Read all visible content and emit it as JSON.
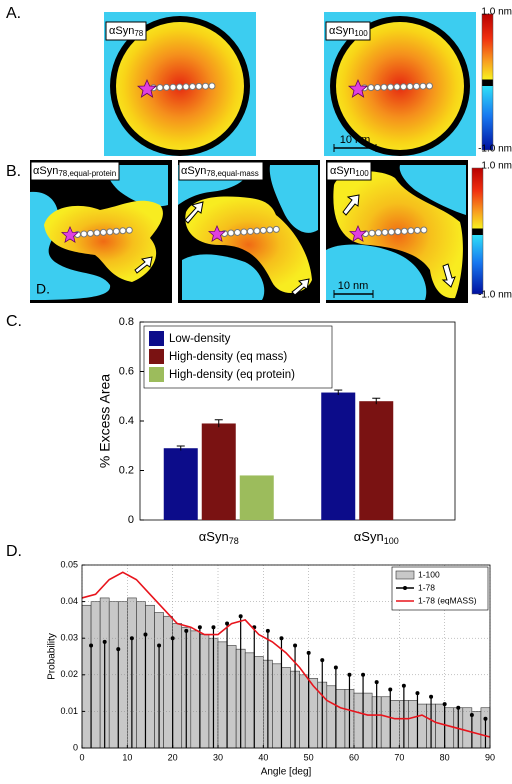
{
  "panels": {
    "A": {
      "letter": "A.",
      "left_label": {
        "base": "αSyn",
        "sub": "78"
      },
      "right_label": {
        "base": "αSyn",
        "sub": "100"
      },
      "scale_bar": "10 nm",
      "colorbar": {
        "max": "1.0 nm",
        "min": "-1.0 nm"
      }
    },
    "B": {
      "letter": "B.",
      "labels": [
        {
          "base": "αSyn",
          "sub": "78,equal-protein"
        },
        {
          "base": "αSyn",
          "sub": "78,equal-mass"
        },
        {
          "base": "αSyn",
          "sub": "100"
        }
      ],
      "inset_letter": "D.",
      "scale_bar": "10 nm",
      "colorbar": {
        "max": "1.0 nm",
        "min": "-1.0 nm"
      }
    },
    "C": {
      "letter": "C."
    },
    "D": {
      "letter": "D."
    }
  },
  "chart_data": [
    {
      "type": "bar",
      "ylabel": "% Excess Area",
      "categories": [
        {
          "base": "αSyn",
          "sub": "78"
        },
        {
          "base": "αSyn",
          "sub": "100"
        }
      ],
      "series": [
        {
          "name": "Low-density",
          "color": "#0c0c8a",
          "values": [
            0.29,
            0.515
          ],
          "errors": [
            0.009,
            0.01
          ]
        },
        {
          "name": "High-density (eq mass)",
          "color": "#7a1212",
          "values": [
            0.39,
            0.48
          ],
          "errors": [
            0.015,
            0.012
          ]
        },
        {
          "name": "High-density (eq protein)",
          "color": "#9cbc5c",
          "values": [
            0.18,
            null
          ]
        }
      ],
      "ylim": [
        0,
        0.8
      ],
      "yticks": [
        0,
        0.2,
        0.4,
        0.6,
        0.8
      ],
      "legend": "upper left"
    },
    {
      "type": "histogram",
      "xlabel": "Angle [deg]",
      "ylabel": "Probability",
      "xlim": [
        0,
        90
      ],
      "xticks": [
        0,
        10,
        20,
        30,
        40,
        50,
        60,
        70,
        80,
        90
      ],
      "ylim": [
        0,
        0.05
      ],
      "yticks": [
        0,
        0.01,
        0.02,
        0.03,
        0.04,
        0.05
      ],
      "grid": true,
      "legend": "upper right",
      "series": [
        {
          "name": "1-100",
          "type": "bar",
          "color": "#c8c8c8",
          "bins": [
            0,
            2,
            4,
            6,
            8,
            10,
            12,
            14,
            16,
            18,
            20,
            22,
            24,
            26,
            28,
            30,
            32,
            34,
            36,
            38,
            40,
            42,
            44,
            46,
            48,
            50,
            52,
            54,
            56,
            58,
            60,
            62,
            64,
            66,
            68,
            70,
            72,
            74,
            76,
            78,
            80,
            82,
            84,
            86,
            88,
            90
          ],
          "values": [
            0.039,
            0.04,
            0.041,
            0.04,
            0.04,
            0.041,
            0.04,
            0.039,
            0.037,
            0.036,
            0.034,
            0.033,
            0.032,
            0.031,
            0.03,
            0.029,
            0.028,
            0.027,
            0.026,
            0.025,
            0.024,
            0.023,
            0.022,
            0.021,
            0.02,
            0.019,
            0.018,
            0.017,
            0.016,
            0.016,
            0.015,
            0.015,
            0.014,
            0.014,
            0.013,
            0.013,
            0.013,
            0.012,
            0.012,
            0.012,
            0.011,
            0.011,
            0.011,
            0.01,
            0.011
          ]
        },
        {
          "name": "1-78",
          "type": "stem",
          "color": "#000000",
          "x": [
            2,
            5,
            8,
            11,
            14,
            17,
            20,
            23,
            26,
            29,
            32,
            35,
            38,
            41,
            44,
            47,
            50,
            53,
            56,
            59,
            62,
            65,
            68,
            71,
            74,
            77,
            80,
            83,
            86,
            89
          ],
          "values": [
            0.028,
            0.029,
            0.027,
            0.03,
            0.031,
            0.028,
            0.03,
            0.032,
            0.033,
            0.033,
            0.034,
            0.036,
            0.033,
            0.032,
            0.03,
            0.028,
            0.026,
            0.024,
            0.022,
            0.02,
            0.02,
            0.018,
            0.016,
            0.017,
            0.015,
            0.014,
            0.012,
            0.011,
            0.009,
            0.008
          ]
        },
        {
          "name": "1-78 (eqMASS)",
          "type": "line",
          "color": "#e8141c",
          "x": [
            0,
            3,
            6,
            9,
            12,
            15,
            18,
            21,
            24,
            27,
            30,
            33,
            36,
            39,
            42,
            45,
            48,
            51,
            54,
            57,
            60,
            63,
            66,
            69,
            72,
            75,
            78,
            81,
            84,
            87,
            90
          ],
          "values": [
            0.041,
            0.042,
            0.046,
            0.048,
            0.046,
            0.042,
            0.038,
            0.034,
            0.033,
            0.031,
            0.031,
            0.034,
            0.035,
            0.031,
            0.029,
            0.026,
            0.022,
            0.017,
            0.013,
            0.011,
            0.01,
            0.009,
            0.009,
            0.008,
            0.008,
            0.009,
            0.007,
            0.006,
            0.005,
            0.004,
            0.003
          ]
        }
      ]
    }
  ]
}
